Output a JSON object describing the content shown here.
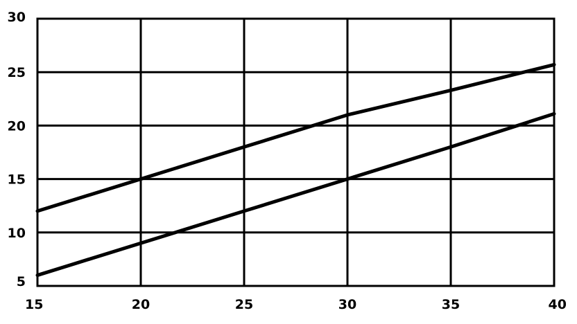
{
  "chart_data": {
    "type": "line",
    "title": "",
    "xlabel": "",
    "ylabel": "",
    "xlim": [
      15,
      40
    ],
    "ylim": [
      5,
      30
    ],
    "x_ticks": [
      15,
      20,
      25,
      30,
      35,
      40
    ],
    "y_ticks": [
      5,
      10,
      15,
      20,
      25,
      30
    ],
    "grid": true,
    "legend": "none",
    "series": [
      {
        "x": [
          15,
          20,
          25,
          30,
          35,
          40
        ],
        "y": [
          12,
          15,
          18,
          21,
          23.3,
          25.7
        ]
      },
      {
        "x": [
          15,
          20,
          25,
          30,
          35,
          40
        ],
        "y": [
          6,
          9,
          12,
          15,
          18,
          21.1
        ]
      }
    ]
  }
}
